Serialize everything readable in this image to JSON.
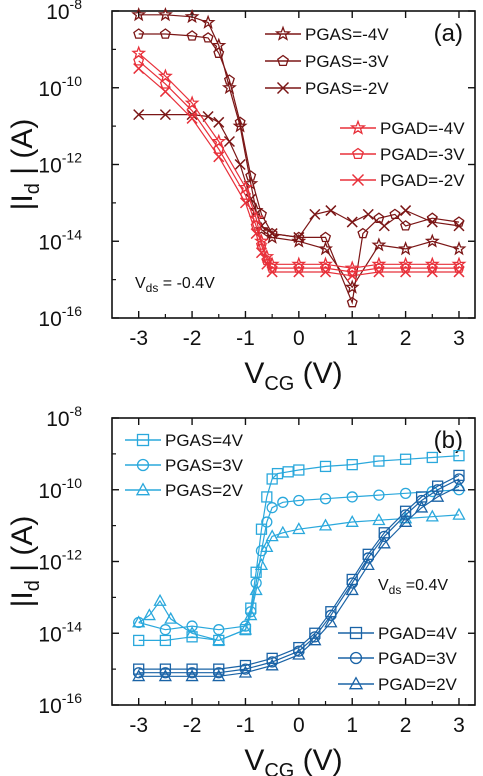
{
  "chart_data": [
    {
      "type": "scatter",
      "panel_label": "(a)",
      "annotation": {
        "prefix": "V",
        "sub": "ds",
        "suffix": " = -0.4V"
      },
      "xlabel": {
        "main": "V",
        "sub": "CG",
        "suffix": " (V)"
      },
      "ylabel": {
        "main": "|I",
        "sub": "d",
        "suffix": " | (A)"
      },
      "xlim": [
        -3.5,
        3.3
      ],
      "ylim_log10": [
        -16,
        -8
      ],
      "yscale": "log",
      "x_ticks": [
        "-3",
        "-2",
        "-1",
        "0",
        "1",
        "2",
        "3"
      ],
      "y_ticks": [
        {
          "base": "10",
          "exp": "-8"
        },
        {
          "base": "10",
          "exp": "-10"
        },
        {
          "base": "10",
          "exp": "-12"
        },
        {
          "base": "10",
          "exp": "-14"
        },
        {
          "base": "10",
          "exp": "-16"
        }
      ],
      "colors": {
        "PGAS": "#7b1616",
        "PGAD": "#e8303a"
      },
      "series": [
        {
          "name": "PGAS=-4V",
          "marker": "star",
          "group": "PGAS",
          "x": [
            -3.0,
            -2.5,
            -2.0,
            -1.7,
            -1.5,
            -1.3,
            -1.1,
            -0.9,
            -0.8,
            -0.7,
            -0.5,
            0.0,
            0.5,
            1.0,
            1.5,
            2.0,
            2.5,
            3.0
          ],
          "y_log10": [
            -8.1,
            -8.1,
            -8.15,
            -8.3,
            -8.9,
            -10.0,
            -11.0,
            -12.5,
            -13.2,
            -13.7,
            -13.9,
            -14.0,
            -14.2,
            -15.2,
            -14.1,
            -14.2,
            -14.0,
            -14.2
          ]
        },
        {
          "name": "PGAS=-3V",
          "marker": "pentagon",
          "group": "PGAS",
          "x": [
            -3.0,
            -2.5,
            -2.0,
            -1.7,
            -1.5,
            -1.3,
            -1.1,
            -0.9,
            -0.7,
            -0.5,
            0.0,
            0.5,
            1.0,
            1.2,
            1.5,
            1.8,
            2.0,
            2.5,
            3.0
          ],
          "y_log10": [
            -8.6,
            -8.6,
            -8.65,
            -8.7,
            -9.1,
            -9.8,
            -10.9,
            -12.3,
            -13.3,
            -13.8,
            -13.9,
            -13.9,
            -15.6,
            -13.8,
            -13.4,
            -13.3,
            -13.6,
            -13.4,
            -13.5
          ]
        },
        {
          "name": "PGAS=-2V",
          "marker": "x",
          "group": "PGAS",
          "x": [
            -3.0,
            -2.5,
            -2.0,
            -1.7,
            -1.5,
            -1.3,
            -1.1,
            -0.9,
            -0.7,
            -0.5,
            0.0,
            0.3,
            0.6,
            1.0,
            1.3,
            1.6,
            2.0,
            2.5,
            3.0
          ],
          "y_log10": [
            -10.7,
            -10.7,
            -10.7,
            -10.75,
            -10.9,
            -11.4,
            -12.0,
            -12.9,
            -13.6,
            -13.8,
            -13.9,
            -13.3,
            -13.2,
            -13.5,
            -13.3,
            -13.6,
            -13.2,
            -13.5,
            -13.6
          ]
        },
        {
          "name": "PGAD=-4V",
          "marker": "star",
          "group": "PGAD",
          "x": [
            -3.0,
            -2.5,
            -2.0,
            -1.5,
            -1.0,
            -0.8,
            -0.7,
            -0.6,
            -0.5,
            0.0,
            0.5,
            1.0,
            1.5,
            2.0,
            2.5,
            3.0
          ],
          "y_log10": [
            -9.1,
            -9.7,
            -10.4,
            -11.4,
            -12.6,
            -13.4,
            -14.0,
            -14.4,
            -14.6,
            -14.6,
            -14.6,
            -14.7,
            -14.6,
            -14.6,
            -14.6,
            -14.6
          ]
        },
        {
          "name": "PGAD=-3V",
          "marker": "pentagon",
          "group": "PGAD",
          "x": [
            -3.0,
            -2.5,
            -2.0,
            -1.5,
            -1.0,
            -0.8,
            -0.7,
            -0.6,
            -0.5,
            0.0,
            0.5,
            1.0,
            1.5,
            2.0,
            2.5,
            3.0
          ],
          "y_log10": [
            -9.3,
            -9.9,
            -10.6,
            -11.6,
            -12.8,
            -13.6,
            -14.1,
            -14.5,
            -14.7,
            -14.7,
            -14.7,
            -14.8,
            -14.7,
            -14.7,
            -14.7,
            -14.7
          ]
        },
        {
          "name": "PGAD=-2V",
          "marker": "x",
          "group": "PGAD",
          "x": [
            -3.0,
            -2.5,
            -2.0,
            -1.5,
            -1.0,
            -0.8,
            -0.7,
            -0.6,
            -0.5,
            0.0,
            0.5,
            1.0,
            1.5,
            2.0,
            2.5,
            3.0
          ],
          "y_log10": [
            -9.5,
            -10.1,
            -10.8,
            -11.8,
            -13.0,
            -13.8,
            -14.3,
            -14.6,
            -14.8,
            -14.8,
            -14.8,
            -14.9,
            -14.8,
            -14.8,
            -14.8,
            -14.8
          ]
        }
      ]
    },
    {
      "type": "scatter",
      "panel_label": "(b)",
      "annotation": {
        "prefix": "V",
        "sub": "ds",
        "suffix": " =0.4V"
      },
      "xlabel": {
        "main": "V",
        "sub": "CG",
        "suffix": " (V)"
      },
      "ylabel": {
        "main": "|I",
        "sub": "d",
        "suffix": " | (A)"
      },
      "xlim": [
        -3.5,
        3.3
      ],
      "ylim_log10": [
        -16,
        -8
      ],
      "yscale": "log",
      "x_ticks": [
        "-3",
        "-2",
        "-1",
        "0",
        "1",
        "2",
        "3"
      ],
      "y_ticks": [
        {
          "base": "10",
          "exp": "-8"
        },
        {
          "base": "10",
          "exp": "-10"
        },
        {
          "base": "10",
          "exp": "-12"
        },
        {
          "base": "10",
          "exp": "-14"
        },
        {
          "base": "10",
          "exp": "-16"
        }
      ],
      "colors": {
        "PGAS": "#2aa8dc",
        "PGAD": "#1a63a6"
      },
      "series": [
        {
          "name": "PGAS=4V",
          "marker": "square",
          "group": "PGAS",
          "x": [
            -3.0,
            -2.5,
            -2.0,
            -1.5,
            -1.0,
            -0.9,
            -0.8,
            -0.7,
            -0.6,
            -0.5,
            -0.4,
            -0.2,
            0.0,
            0.5,
            1.0,
            1.5,
            2.0,
            2.5,
            3.0
          ],
          "y_log10": [
            -14.2,
            -14.2,
            -14.1,
            -14.2,
            -13.9,
            -13.3,
            -12.3,
            -11.1,
            -10.2,
            -9.7,
            -9.55,
            -9.5,
            -9.45,
            -9.35,
            -9.3,
            -9.2,
            -9.15,
            -9.1,
            -9.05
          ]
        },
        {
          "name": "PGAS=3V",
          "marker": "circle",
          "group": "PGAS",
          "x": [
            -3.0,
            -2.5,
            -2.0,
            -1.5,
            -1.0,
            -0.9,
            -0.8,
            -0.7,
            -0.6,
            -0.5,
            -0.3,
            0.0,
            0.5,
            1.0,
            1.5,
            2.0,
            2.5,
            3.0
          ],
          "y_log10": [
            -13.7,
            -13.9,
            -13.8,
            -13.9,
            -13.8,
            -13.4,
            -12.6,
            -11.7,
            -10.9,
            -10.5,
            -10.35,
            -10.3,
            -10.25,
            -10.2,
            -10.15,
            -10.1,
            -10.05,
            -10.0
          ]
        },
        {
          "name": "PGAS=2V",
          "marker": "triangle",
          "group": "PGAS",
          "x": [
            -3.0,
            -2.8,
            -2.6,
            -2.4,
            -2.0,
            -1.5,
            -1.0,
            -0.9,
            -0.8,
            -0.7,
            -0.6,
            -0.5,
            -0.3,
            0.0,
            0.5,
            1.0,
            1.5,
            2.0,
            2.5,
            3.0
          ],
          "y_log10": [
            -13.7,
            -13.5,
            -13.1,
            -13.6,
            -14.0,
            -14.2,
            -13.9,
            -13.5,
            -12.8,
            -12.1,
            -11.6,
            -11.3,
            -11.2,
            -11.1,
            -11.0,
            -10.9,
            -10.85,
            -10.8,
            -10.75,
            -10.7
          ]
        },
        {
          "name": "PGAD=4V",
          "marker": "square",
          "group": "PGAD",
          "x": [
            -3.0,
            -2.5,
            -2.0,
            -1.5,
            -1.0,
            -0.5,
            0.0,
            0.3,
            0.6,
            1.0,
            1.3,
            1.6,
            2.0,
            2.3,
            2.6,
            3.0
          ],
          "y_log10": [
            -15.0,
            -15.0,
            -15.0,
            -15.0,
            -14.9,
            -14.7,
            -14.4,
            -14.0,
            -13.4,
            -12.5,
            -11.8,
            -11.2,
            -10.6,
            -10.2,
            -9.9,
            -9.6
          ]
        },
        {
          "name": "PGAD=3V",
          "marker": "circle",
          "group": "PGAD",
          "x": [
            -3.0,
            -2.5,
            -2.0,
            -1.5,
            -1.0,
            -0.5,
            0.0,
            0.3,
            0.6,
            1.0,
            1.3,
            1.6,
            2.0,
            2.3,
            2.6,
            3.0
          ],
          "y_log10": [
            -15.1,
            -15.1,
            -15.1,
            -15.1,
            -15.0,
            -14.8,
            -14.5,
            -14.1,
            -13.5,
            -12.6,
            -11.9,
            -11.3,
            -10.7,
            -10.3,
            -10.0,
            -9.7
          ]
        },
        {
          "name": "PGAD=2V",
          "marker": "triangle",
          "group": "PGAD",
          "x": [
            -3.0,
            -2.5,
            -2.0,
            -1.5,
            -1.0,
            -0.5,
            0.0,
            0.3,
            0.6,
            1.0,
            1.3,
            1.6,
            2.0,
            2.3,
            2.6,
            3.0
          ],
          "y_log10": [
            -15.2,
            -15.2,
            -15.2,
            -15.2,
            -15.1,
            -14.9,
            -14.6,
            -14.2,
            -13.7,
            -12.8,
            -12.1,
            -11.5,
            -10.9,
            -10.5,
            -10.2,
            -9.9
          ]
        }
      ]
    }
  ]
}
